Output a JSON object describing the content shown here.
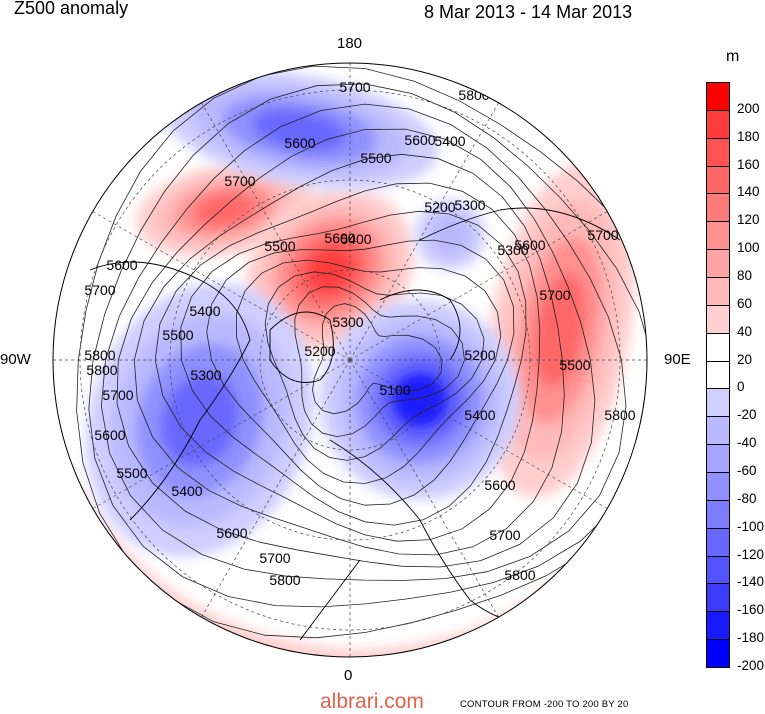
{
  "header": {
    "title": "Z500 anomaly",
    "date_range": "8 Mar 2013 - 14 Mar 2013"
  },
  "map": {
    "projection": "polar-stereographic-north",
    "longitude_labels": {
      "top": "180",
      "bottom": "0",
      "left": "90W",
      "right": "90E"
    },
    "contour_labels": [
      "5700",
      "5800",
      "5600",
      "5500",
      "5700",
      "5400",
      "5200",
      "5300",
      "5600",
      "5500",
      "5400",
      "5300",
      "5200",
      "5100",
      "5600",
      "5700",
      "5400",
      "5500",
      "5300",
      "5700",
      "5800",
      "5600",
      "5500",
      "5400",
      "5600",
      "5700",
      "5800",
      "5700",
      "5800",
      "5500",
      "5300",
      "5200",
      "5400",
      "5600",
      "5700",
      "5800",
      "5600",
      "5700",
      "5600",
      "5800"
    ],
    "features": [
      {
        "name": "positive-anomaly-alaska",
        "sign": "positive",
        "value": 160
      },
      {
        "name": "positive-anomaly-greenland",
        "sign": "positive",
        "value": 200
      },
      {
        "name": "positive-anomaly-asia",
        "sign": "positive",
        "value": 140
      },
      {
        "name": "positive-anomaly-atlantic",
        "sign": "positive",
        "value": 60
      },
      {
        "name": "negative-anomaly-pacific",
        "sign": "negative",
        "value": -140
      },
      {
        "name": "negative-anomaly-north-america",
        "sign": "negative",
        "value": -140
      },
      {
        "name": "negative-anomaly-europe",
        "sign": "negative",
        "value": -200
      },
      {
        "name": "negative-anomaly-siberia",
        "sign": "negative",
        "value": -80
      }
    ]
  },
  "colorbar": {
    "unit": "m",
    "labels": [
      "200",
      "180",
      "160",
      "140",
      "120",
      "100",
      "80",
      "60",
      "40",
      "20",
      "0",
      "-20",
      "-40",
      "-60",
      "-80",
      "-100",
      "-120",
      "-140",
      "-160",
      "-180",
      "-200"
    ],
    "colors": [
      "#ff0000",
      "#ff3c3c",
      "#ff5353",
      "#ff6767",
      "#ff7c7c",
      "#ff9090",
      "#ffa5a5",
      "#ffb9b9",
      "#ffcece",
      "#ffffff",
      "#ffffff",
      "#ceceff",
      "#b9b9ff",
      "#a5a5ff",
      "#9090ff",
      "#7c7cff",
      "#6767ff",
      "#5353ff",
      "#3c3cff",
      "#1a1aff",
      "#0000ff"
    ]
  },
  "footer": {
    "watermark": "albrari.com",
    "contour_note": "CONTOUR FROM -200 TO 200 BY 20"
  }
}
